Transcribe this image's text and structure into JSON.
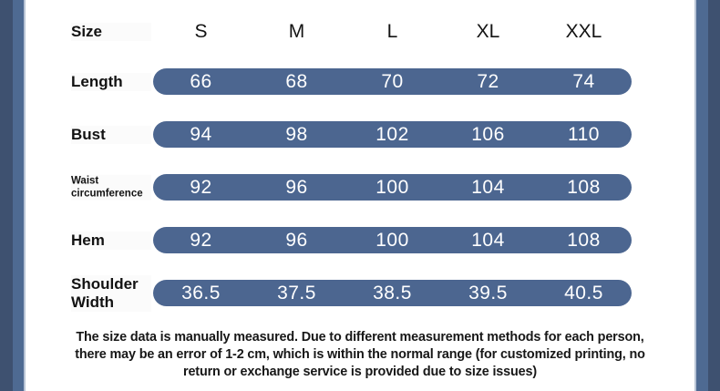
{
  "chart_data": {
    "type": "table",
    "header_label": "Size",
    "categories": [
      "S",
      "M",
      "L",
      "XL",
      "XXL"
    ],
    "rows": [
      {
        "label": "Length",
        "values": [
          "66",
          "68",
          "70",
          "72",
          "74"
        ]
      },
      {
        "label": "Bust",
        "values": [
          "94",
          "98",
          "102",
          "106",
          "110"
        ]
      },
      {
        "label": "Waist circumference",
        "values": [
          "92",
          "96",
          "100",
          "104",
          "108"
        ]
      },
      {
        "label": "Hem",
        "values": [
          "92",
          "96",
          "100",
          "104",
          "108"
        ]
      },
      {
        "label": "Shoulder Width",
        "values": [
          "36.5",
          "37.5",
          "38.5",
          "39.5",
          "40.5"
        ]
      }
    ],
    "note": "The size data is manually measured. Due to different measurement methods for each person, there may be an error of 1-2 cm, which is within the normal range (for customized printing, no return or exchange service is provided due to size issues)",
    "layout": {
      "grid": "off",
      "legend": "none",
      "unit": "cm"
    }
  },
  "colors": {
    "pill_blue": "#4c6690",
    "strip_outer": "#3e5170",
    "strip_inner": "#4e6a92",
    "strip_sliver": "#b7c3d4",
    "value_text": "#ffffff",
    "label_text": "#121212",
    "background": "#ffffff"
  }
}
